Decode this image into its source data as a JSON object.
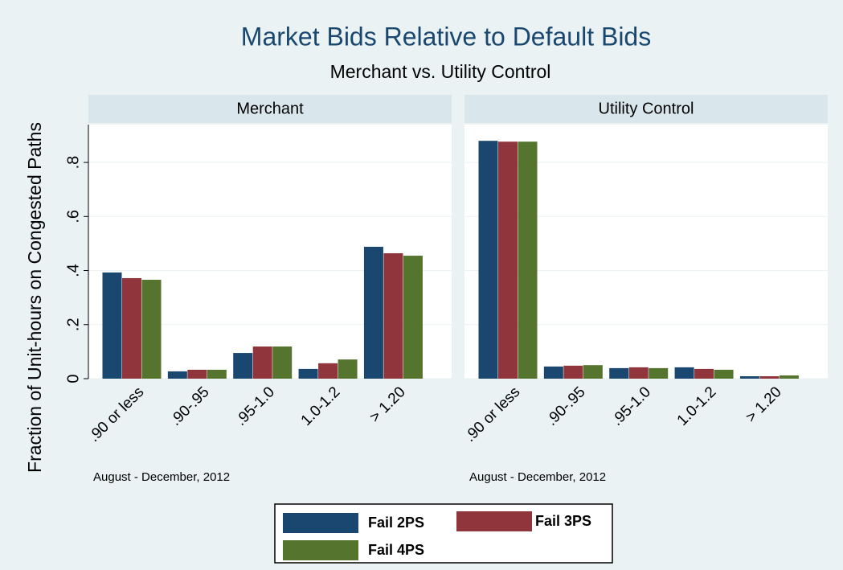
{
  "chart_data": {
    "type": "bar",
    "title": "Market Bids Relative to Default Bids",
    "subtitle": "Merchant vs. Utility Control",
    "y_label": "Fraction of Unit-hours on Congested Paths",
    "ylim": [
      0,
      0.94
    ],
    "yticks": [
      0,
      {
        "value": 0.2,
        "label": ".2"
      },
      {
        "value": 0.4,
        "label": ".4"
      },
      {
        "value": 0.6,
        "label": ".6"
      },
      {
        "value": 0.8,
        "label": ".8"
      }
    ],
    "categories": [
      ".90 or less",
      ".90-.95",
      ".95-1.0",
      "1.0-1.2",
      "> 1.20"
    ],
    "series": [
      {
        "name": "Fail 2PS",
        "color": "#1a476f"
      },
      {
        "name": "Fail 3PS",
        "color": "#90353b"
      },
      {
        "name": "Fail 4PS",
        "color": "#55752f"
      }
    ],
    "panels": [
      {
        "title": "Merchant",
        "note": "August - December, 2012",
        "series": [
          {
            "values": [
              0.393,
              0.027,
              0.095,
              0.036,
              0.488
            ]
          },
          {
            "values": [
              0.372,
              0.033,
              0.119,
              0.057,
              0.464
            ]
          },
          {
            "values": [
              0.366,
              0.033,
              0.119,
              0.071,
              0.455
            ]
          }
        ]
      },
      {
        "title": "Utility Control",
        "note": "August - December, 2012",
        "series": [
          {
            "values": [
              0.88,
              0.045,
              0.039,
              0.042,
              0.009
            ]
          },
          {
            "values": [
              0.877,
              0.048,
              0.042,
              0.036,
              0.009
            ]
          },
          {
            "values": [
              0.877,
              0.05,
              0.039,
              0.033,
              0.012
            ]
          }
        ]
      }
    ]
  }
}
